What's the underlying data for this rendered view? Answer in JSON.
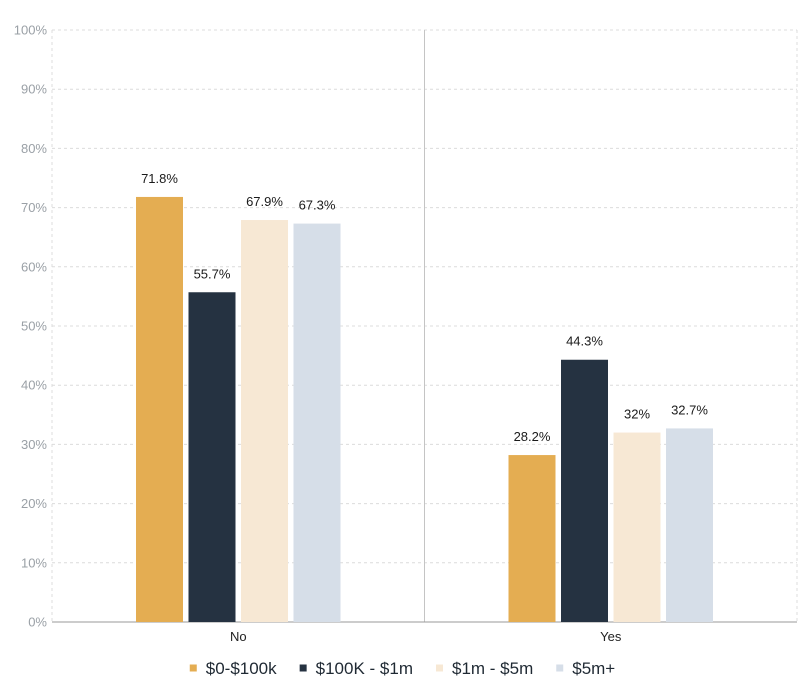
{
  "chart_data": {
    "type": "bar",
    "title": "",
    "xlabel": "",
    "ylabel": "",
    "ylim": [
      0,
      100
    ],
    "y_ticks": [
      0,
      10,
      20,
      30,
      40,
      50,
      60,
      70,
      80,
      90,
      100
    ],
    "y_tick_suffix": "%",
    "grid": true,
    "legend_position": "bottom",
    "categories": [
      "No",
      "Yes"
    ],
    "series": [
      {
        "name": "$0-$100k",
        "color": "#e4ad52",
        "values": [
          71.8,
          28.2
        ],
        "labels": [
          "71.8%",
          "28.2%"
        ]
      },
      {
        "name": "$100K - $1m",
        "color": "#253241",
        "values": [
          55.7,
          44.3
        ],
        "labels": [
          "55.7%",
          "44.3%"
        ]
      },
      {
        "name": "$1m - $5m",
        "color": "#f7e8d4",
        "values": [
          67.9,
          32
        ],
        "labels": [
          "67.9%",
          "32%"
        ]
      },
      {
        "name": "$5m+",
        "color": "#d6dee8",
        "values": [
          67.3,
          32.7
        ],
        "labels": [
          "67.3%",
          "32.7%"
        ]
      }
    ]
  }
}
